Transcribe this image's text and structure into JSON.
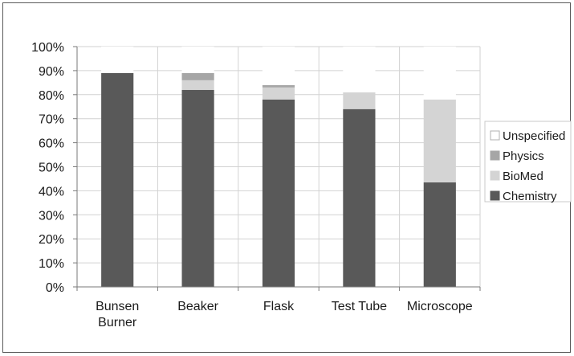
{
  "chart_data": {
    "type": "bar",
    "stacked": true,
    "categories": [
      [
        "Bunsen",
        "Burner"
      ],
      [
        "Beaker"
      ],
      [
        "Flask"
      ],
      [
        "Test Tube"
      ],
      [
        "Microscope"
      ]
    ],
    "ylim": [
      0,
      100
    ],
    "ytick_labels": [
      "0%",
      "10%",
      "20%",
      "30%",
      "40%",
      "50%",
      "60%",
      "70%",
      "80%",
      "90%",
      "100%"
    ],
    "grid": true,
    "legend_position": "right",
    "series": [
      {
        "name": "Chemistry",
        "color": "#595959",
        "values": [
          89,
          82,
          78,
          74,
          43.5
        ]
      },
      {
        "name": "BioMed",
        "color": "#d4d4d4",
        "values": [
          0,
          4,
          5,
          7,
          34.5
        ]
      },
      {
        "name": "Physics",
        "color": "#a6a6a6",
        "values": [
          0,
          3,
          1,
          0,
          0
        ]
      },
      {
        "name": "Unspecified",
        "color": "#ffffff",
        "values": [
          11,
          11,
          16,
          19,
          22
        ]
      }
    ],
    "legend_order": [
      "Unspecified",
      "Physics",
      "BioMed",
      "Chemistry"
    ]
  }
}
